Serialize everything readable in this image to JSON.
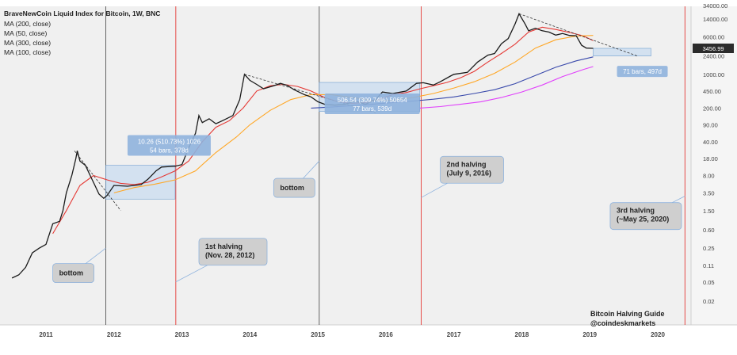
{
  "chart_data": {
    "type": "line",
    "title": "BraveNewCoin Liquid Index for Bitcoin, 1W, BNC",
    "legend": [
      "MA (200, close)",
      "MA (50, close)",
      "MA (300, close)",
      "MA (100, close)"
    ],
    "legend_placement": "top-left",
    "yscale": "log",
    "grid": false,
    "x_ticks": [
      "2011",
      "2012",
      "2013",
      "2014",
      "2015",
      "2016",
      "2017",
      "2018",
      "2019",
      "2020"
    ],
    "y_ticks": [
      "34000.00",
      "14000.00",
      "6000.00",
      "2400.00",
      "1000.00",
      "450.00",
      "200.00",
      "90.00",
      "40.00",
      "18.00",
      "8.00",
      "3.50",
      "1.50",
      "0.60",
      "0.25",
      "0.11",
      "0.05",
      "0.02"
    ],
    "last_price_label": "3456.99",
    "price_points": [
      [
        2010.5,
        0.06
      ],
      [
        2010.6,
        0.07
      ],
      [
        2010.7,
        0.1
      ],
      [
        2010.8,
        0.2
      ],
      [
        2010.9,
        0.25
      ],
      [
        2011.0,
        0.3
      ],
      [
        2011.1,
        0.8
      ],
      [
        2011.2,
        0.9
      ],
      [
        2011.25,
        1.5
      ],
      [
        2011.3,
        3.5
      ],
      [
        2011.38,
        8
      ],
      [
        2011.44,
        18
      ],
      [
        2011.46,
        26
      ],
      [
        2011.5,
        16
      ],
      [
        2011.58,
        13
      ],
      [
        2011.65,
        8
      ],
      [
        2011.72,
        5
      ],
      [
        2011.78,
        3.3
      ],
      [
        2011.85,
        2.7
      ],
      [
        2011.9,
        3.1
      ],
      [
        2012.0,
        5
      ],
      [
        2012.2,
        4.8
      ],
      [
        2012.4,
        5.2
      ],
      [
        2012.5,
        6.7
      ],
      [
        2012.62,
        10
      ],
      [
        2012.7,
        12
      ],
      [
        2012.9,
        12.5
      ],
      [
        2013.0,
        13.5
      ],
      [
        2013.1,
        30
      ],
      [
        2013.2,
        60
      ],
      [
        2013.25,
        140
      ],
      [
        2013.3,
        100
      ],
      [
        2013.4,
        120
      ],
      [
        2013.5,
        95
      ],
      [
        2013.6,
        110
      ],
      [
        2013.75,
        140
      ],
      [
        2013.85,
        300
      ],
      [
        2013.92,
        1000
      ],
      [
        2014.0,
        750
      ],
      [
        2014.1,
        620
      ],
      [
        2014.2,
        500
      ],
      [
        2014.35,
        580
      ],
      [
        2014.45,
        650
      ],
      [
        2014.55,
        590
      ],
      [
        2014.65,
        480
      ],
      [
        2014.8,
        380
      ],
      [
        2014.9,
        340
      ],
      [
        2015.0,
        270
      ],
      [
        2015.1,
        240
      ],
      [
        2015.25,
        230
      ],
      [
        2015.4,
        240
      ],
      [
        2015.55,
        280
      ],
      [
        2015.7,
        240
      ],
      [
        2015.85,
        300
      ],
      [
        2015.95,
        430
      ],
      [
        2016.1,
        400
      ],
      [
        2016.3,
        450
      ],
      [
        2016.45,
        650
      ],
      [
        2016.55,
        670
      ],
      [
        2016.7,
        600
      ],
      [
        2016.8,
        700
      ],
      [
        2016.95,
        920
      ],
      [
        2017.0,
        1000
      ],
      [
        2017.2,
        1100
      ],
      [
        2017.35,
        1800
      ],
      [
        2017.5,
        2500
      ],
      [
        2017.6,
        2700
      ],
      [
        2017.7,
        4300
      ],
      [
        2017.8,
        5500
      ],
      [
        2017.9,
        11000
      ],
      [
        2017.96,
        18000
      ],
      [
        2018.05,
        11000
      ],
      [
        2018.1,
        8000
      ],
      [
        2018.2,
        9000
      ],
      [
        2018.3,
        8000
      ],
      [
        2018.4,
        7500
      ],
      [
        2018.5,
        6500
      ],
      [
        2018.6,
        7000
      ],
      [
        2018.7,
        6400
      ],
      [
        2018.8,
        6300
      ],
      [
        2018.88,
        4000
      ],
      [
        2018.95,
        3500
      ],
      [
        2019.05,
        3456.99
      ]
    ],
    "series": [
      {
        "name": "MA (50, close)",
        "color": "#e53935",
        "points": [
          [
            2011.1,
            0.5
          ],
          [
            2011.3,
            1.5
          ],
          [
            2011.5,
            5
          ],
          [
            2011.7,
            8
          ],
          [
            2011.9,
            6.5
          ],
          [
            2012.1,
            5.5
          ],
          [
            2012.3,
            5.2
          ],
          [
            2012.5,
            5.8
          ],
          [
            2012.7,
            7.5
          ],
          [
            2012.9,
            10
          ],
          [
            2013.1,
            16
          ],
          [
            2013.3,
            40
          ],
          [
            2013.5,
            80
          ],
          [
            2013.7,
            110
          ],
          [
            2013.9,
            200
          ],
          [
            2014.1,
            450
          ],
          [
            2014.3,
            580
          ],
          [
            2014.5,
            620
          ],
          [
            2014.7,
            560
          ],
          [
            2014.9,
            450
          ],
          [
            2015.1,
            330
          ],
          [
            2015.3,
            270
          ],
          [
            2015.5,
            250
          ],
          [
            2015.7,
            260
          ],
          [
            2015.9,
            300
          ],
          [
            2016.1,
            380
          ],
          [
            2016.3,
            420
          ],
          [
            2016.5,
            500
          ],
          [
            2016.7,
            580
          ],
          [
            2016.9,
            680
          ],
          [
            2017.1,
            850
          ],
          [
            2017.3,
            1150
          ],
          [
            2017.5,
            1800
          ],
          [
            2017.7,
            2700
          ],
          [
            2017.9,
            4200
          ],
          [
            2018.1,
            7500
          ],
          [
            2018.3,
            9500
          ],
          [
            2018.5,
            8500
          ],
          [
            2018.7,
            7400
          ],
          [
            2018.9,
            6300
          ],
          [
            2019.05,
            5000
          ]
        ]
      },
      {
        "name": "MA (100, close)",
        "color": "#ffa726",
        "points": [
          [
            2012.0,
            3.5
          ],
          [
            2012.3,
            4.5
          ],
          [
            2012.6,
            5.3
          ],
          [
            2012.9,
            6.5
          ],
          [
            2013.2,
            10
          ],
          [
            2013.5,
            24
          ],
          [
            2013.8,
            50
          ],
          [
            2014.0,
            90
          ],
          [
            2014.3,
            180
          ],
          [
            2014.6,
            300
          ],
          [
            2014.9,
            380
          ],
          [
            2015.2,
            380
          ],
          [
            2015.5,
            330
          ],
          [
            2015.8,
            290
          ],
          [
            2016.1,
            290
          ],
          [
            2016.4,
            330
          ],
          [
            2016.7,
            400
          ],
          [
            2017.0,
            520
          ],
          [
            2017.3,
            700
          ],
          [
            2017.6,
            1050
          ],
          [
            2017.9,
            1800
          ],
          [
            2018.2,
            3500
          ],
          [
            2018.5,
            5200
          ],
          [
            2018.8,
            6200
          ],
          [
            2019.05,
            6400
          ]
        ]
      },
      {
        "name": "MA (200, close)",
        "color": "#3949ab",
        "points": [
          [
            2014.9,
            200
          ],
          [
            2015.2,
            210
          ],
          [
            2015.5,
            225
          ],
          [
            2015.8,
            240
          ],
          [
            2016.1,
            260
          ],
          [
            2016.4,
            280
          ],
          [
            2016.7,
            305
          ],
          [
            2017.0,
            340
          ],
          [
            2017.3,
            400
          ],
          [
            2017.6,
            480
          ],
          [
            2017.9,
            640
          ],
          [
            2018.2,
            950
          ],
          [
            2018.5,
            1400
          ],
          [
            2018.8,
            1900
          ],
          [
            2019.05,
            2300
          ]
        ]
      },
      {
        "name": "MA (300, close)",
        "color": "#e040fb",
        "points": [
          [
            2016.5,
            200
          ],
          [
            2016.8,
            215
          ],
          [
            2017.1,
            240
          ],
          [
            2017.4,
            270
          ],
          [
            2017.7,
            330
          ],
          [
            2018.0,
            430
          ],
          [
            2018.3,
            600
          ],
          [
            2018.6,
            900
          ],
          [
            2018.9,
            1250
          ],
          [
            2019.05,
            1450
          ]
        ]
      }
    ],
    "vertical_markers": [
      {
        "label": "bottom",
        "x": 2011.88,
        "color": "#555555"
      },
      {
        "label": "1st halving\n(Nov. 28, 2012)",
        "x": 2012.91,
        "color": "#e53935"
      },
      {
        "label": "bottom",
        "x": 2015.02,
        "color": "#555555"
      },
      {
        "label": "2nd halving\n(July 9, 2016)",
        "x": 2016.52,
        "color": "#e53935"
      },
      {
        "label": "3rd halving\n(~May 25, 2020)",
        "x": 2020.4,
        "color": "#e53935"
      }
    ],
    "measure_boxes": [
      {
        "line1": "10.26 (510.73%) 1026",
        "line2": "54 bars, 378d",
        "x0": 2011.88,
        "x1": 2012.9,
        "y0": 2.6,
        "y1": 13
      },
      {
        "line1": "506.54 (309.74%) 50654",
        "line2": "77 bars, 539d",
        "x0": 2015.02,
        "x1": 2016.5,
        "y0": 170,
        "y1": 680
      },
      {
        "line1": "71 bars, 497d",
        "line2": "",
        "x0": 2019.05,
        "x1": 2019.9,
        "y0": 2400,
        "y1": 3456.99
      }
    ],
    "watermark": [
      "Bitcoin Halving Guide",
      "@coindeskmarkets"
    ]
  }
}
